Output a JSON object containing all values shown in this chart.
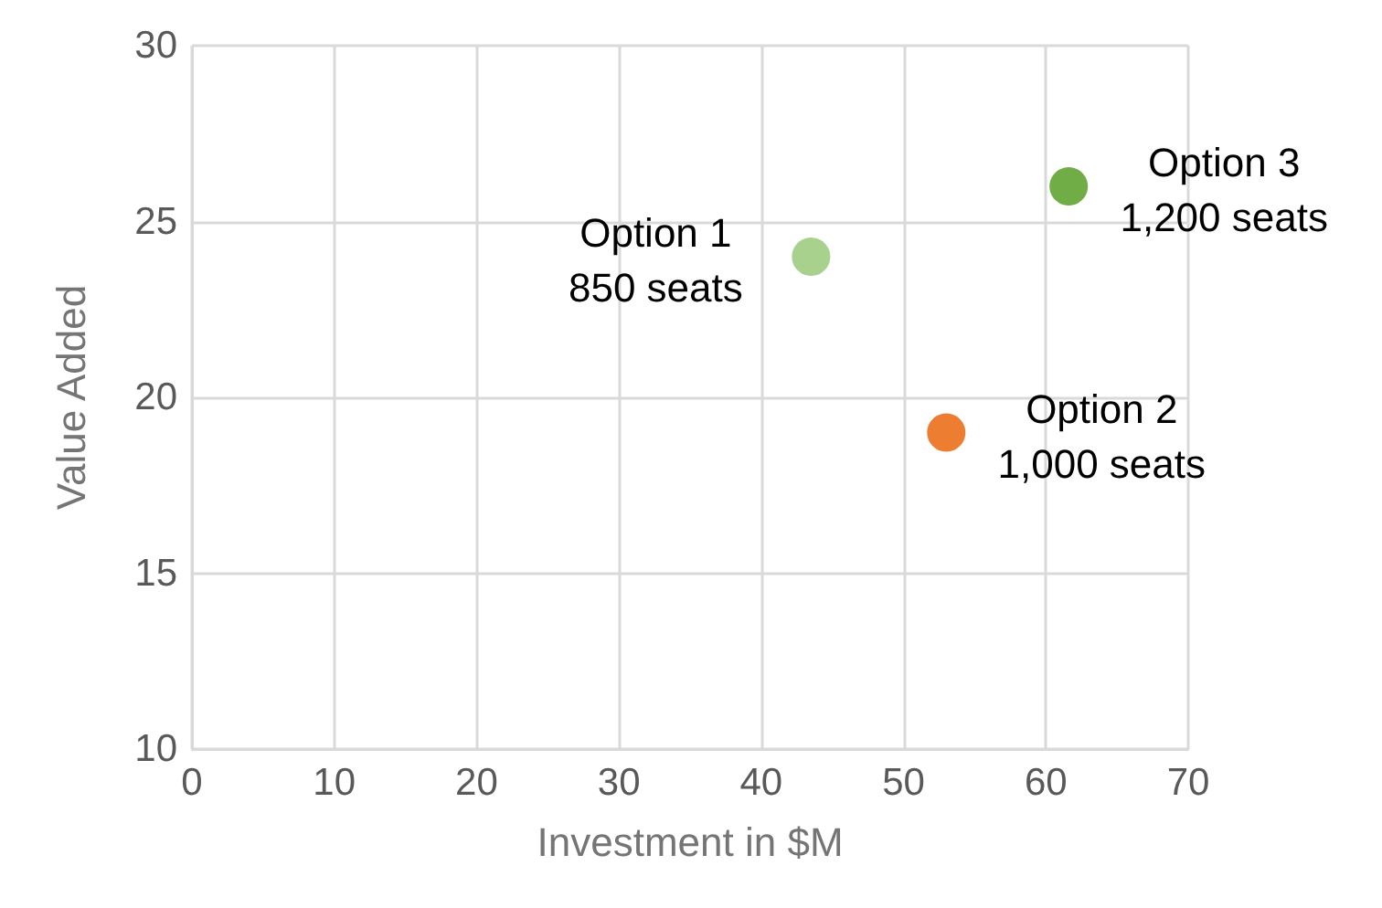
{
  "chart_data": {
    "type": "scatter",
    "xlabel": "Investment in $M",
    "ylabel": "Value Added",
    "x": [
      43.5,
      53,
      61.6
    ],
    "values": [
      24,
      19,
      26
    ],
    "colors": [
      "#a9d18e",
      "#ed7d31",
      "#70ad47"
    ],
    "xlim": [
      0,
      70
    ],
    "xticks": [
      0,
      10,
      20,
      30,
      40,
      50,
      60,
      70
    ],
    "ylim": [
      10,
      30
    ],
    "yticks": [
      10,
      15,
      20,
      25,
      30
    ],
    "grid": true,
    "marker": "circle",
    "annotations": [
      {
        "text": "Option 1\n850 seats",
        "x": 43.5,
        "y": 24
      },
      {
        "text": "Option 2\n1,000 seats",
        "x": 53,
        "y": 19
      },
      {
        "text": "Option 3\n1,200 seats",
        "x": 61.6,
        "y": 26
      }
    ]
  }
}
